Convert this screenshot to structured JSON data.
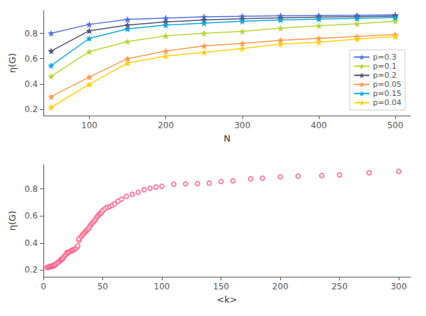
{
  "chart_data": [
    {
      "type": "line",
      "xlabel": "N",
      "ylabel": "η(G)",
      "x": [
        50,
        100,
        150,
        200,
        250,
        300,
        350,
        400,
        450,
        500
      ],
      "series": [
        {
          "name": "p=0.3",
          "values": [
            0.8,
            0.87,
            0.91,
            0.92,
            0.93,
            0.935,
            0.938,
            0.94,
            0.942,
            0.945
          ]
        },
        {
          "name": "p=0.1",
          "values": [
            0.46,
            0.655,
            0.735,
            0.78,
            0.8,
            0.815,
            0.84,
            0.86,
            0.875,
            0.895
          ]
        },
        {
          "name": "p=0.2",
          "values": [
            0.66,
            0.82,
            0.865,
            0.89,
            0.905,
            0.915,
            0.922,
            0.928,
            0.932,
            0.936
          ]
        },
        {
          "name": "p=0.05",
          "values": [
            0.3,
            0.455,
            0.6,
            0.66,
            0.7,
            0.72,
            0.745,
            0.76,
            0.775,
            0.79
          ]
        },
        {
          "name": "p=0.15",
          "values": [
            0.545,
            0.76,
            0.835,
            0.865,
            0.88,
            0.895,
            0.905,
            0.912,
            0.918,
            0.924
          ]
        },
        {
          "name": "p=0.04",
          "values": [
            0.215,
            0.398,
            0.565,
            0.62,
            0.65,
            0.68,
            0.715,
            0.73,
            0.755,
            0.775
          ]
        }
      ],
      "xlim": [
        40,
        520
      ],
      "ylim": [
        0.15,
        0.98
      ],
      "xticks": [
        100,
        200,
        300,
        400,
        500
      ],
      "yticks": [
        0.2,
        0.4,
        0.6,
        0.8
      ],
      "grid": false,
      "legend": "lower right",
      "marker": "star"
    },
    {
      "type": "scatter",
      "xlabel": "<k>",
      "ylabel": "η(G)",
      "x": [
        3,
        4,
        5,
        5,
        6,
        6,
        7,
        7,
        8,
        8,
        9,
        9,
        10,
        10,
        11,
        12,
        13,
        14,
        15,
        15,
        16,
        16,
        17,
        18,
        19,
        20,
        20,
        21,
        22,
        23,
        24,
        25,
        25,
        26,
        27,
        28,
        29,
        30,
        30,
        32,
        33,
        34,
        35,
        36,
        37,
        38,
        39,
        40,
        41,
        42,
        43,
        44,
        45,
        46,
        47,
        48,
        49,
        50,
        52,
        54,
        56,
        58,
        60,
        63,
        66,
        70,
        75,
        80,
        85,
        90,
        95,
        100,
        110,
        120,
        130,
        140,
        150,
        160,
        175,
        185,
        200,
        215,
        235,
        250,
        275,
        300
      ],
      "values": [
        0.218,
        0.22,
        0.222,
        0.225,
        0.225,
        0.228,
        0.228,
        0.23,
        0.23,
        0.232,
        0.232,
        0.235,
        0.238,
        0.242,
        0.248,
        0.255,
        0.26,
        0.27,
        0.275,
        0.278,
        0.282,
        0.285,
        0.295,
        0.305,
        0.315,
        0.325,
        0.33,
        0.33,
        0.335,
        0.34,
        0.345,
        0.348,
        0.35,
        0.352,
        0.358,
        0.365,
        0.378,
        0.42,
        0.432,
        0.448,
        0.46,
        0.47,
        0.48,
        0.49,
        0.498,
        0.505,
        0.52,
        0.535,
        0.545,
        0.555,
        0.565,
        0.575,
        0.59,
        0.6,
        0.612,
        0.62,
        0.625,
        0.64,
        0.655,
        0.665,
        0.67,
        0.678,
        0.69,
        0.71,
        0.725,
        0.745,
        0.76,
        0.775,
        0.795,
        0.805,
        0.815,
        0.82,
        0.835,
        0.838,
        0.84,
        0.843,
        0.855,
        0.86,
        0.875,
        0.88,
        0.89,
        0.895,
        0.9,
        0.905,
        0.92,
        0.93
      ],
      "xlim": [
        0,
        310
      ],
      "ylim": [
        0.15,
        0.98
      ],
      "xticks": [
        0,
        50,
        100,
        150,
        200,
        250,
        300
      ],
      "yticks": [
        0.2,
        0.4,
        0.6,
        0.8
      ],
      "grid": false,
      "marker": "ring"
    }
  ]
}
